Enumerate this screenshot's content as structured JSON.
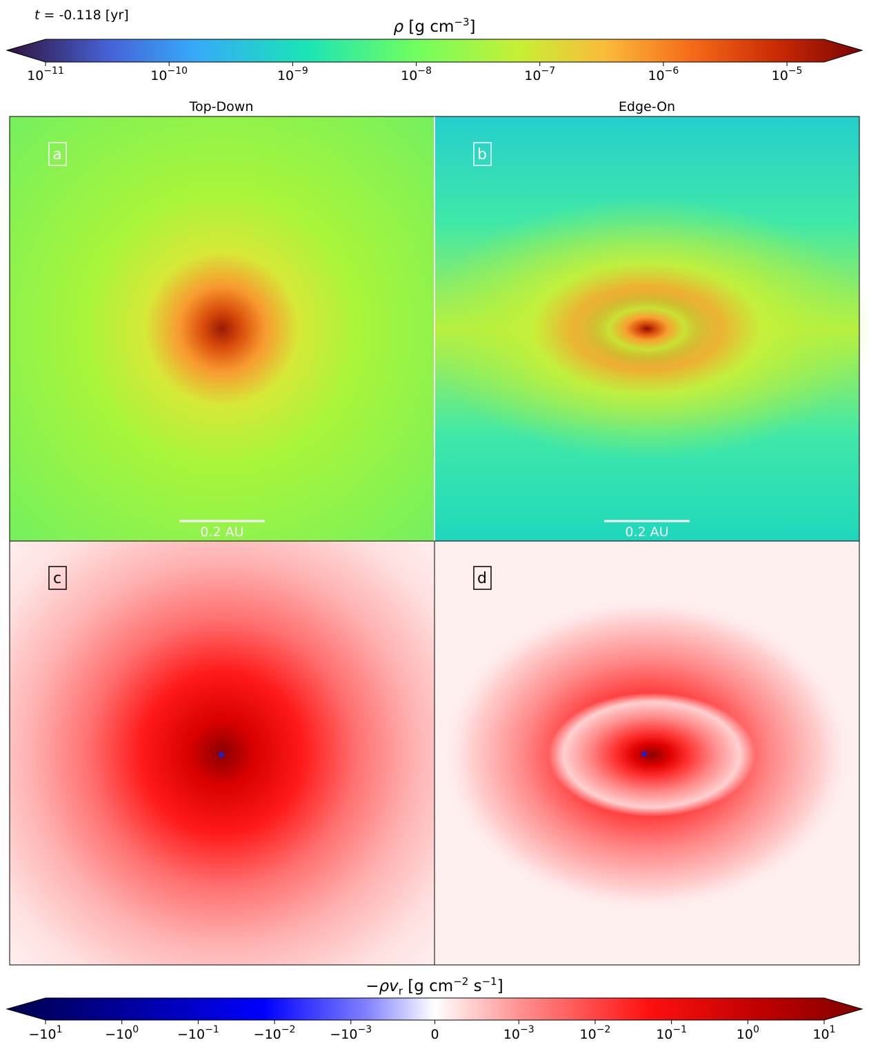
{
  "time_label": {
    "symbol": "t",
    "text": " = -0.118 [yr]"
  },
  "colorbar_top": {
    "label_parts": [
      "ρ",
      " [g cm",
      "−3",
      "]"
    ],
    "scale": "log",
    "lim": [
      1e-11,
      2e-05
    ],
    "ticks": [
      {
        "value": 1e-11,
        "label": "10",
        "exp": "−11"
      },
      {
        "value": 1e-10,
        "label": "10",
        "exp": "−10"
      },
      {
        "value": 1e-09,
        "label": "10",
        "exp": "−9"
      },
      {
        "value": 1e-08,
        "label": "10",
        "exp": "−8"
      },
      {
        "value": 1e-07,
        "label": "10",
        "exp": "−7"
      },
      {
        "value": 1e-06,
        "label": "10",
        "exp": "−6"
      },
      {
        "value": 1e-05,
        "label": "10",
        "exp": "−5"
      }
    ]
  },
  "colorbar_bottom": {
    "label_parts": [
      "−ρv",
      "r",
      " [g cm",
      "−2",
      " s",
      "−1",
      "]"
    ],
    "scale": "symlog",
    "linthresh": 0.001,
    "linscale": 1.1,
    "lim": [
      -10,
      10
    ],
    "ticks": [
      {
        "value": -10,
        "label": "−10",
        "exp": "1"
      },
      {
        "value": -1,
        "label": "−10",
        "exp": "0"
      },
      {
        "value": -0.1,
        "label": "−10",
        "exp": "−1"
      },
      {
        "value": -0.01,
        "label": "−10",
        "exp": "−2"
      },
      {
        "value": -0.001,
        "label": "−10",
        "exp": "−3"
      },
      {
        "value": 0,
        "label": "0"
      },
      {
        "value": 0.001,
        "label": "10",
        "exp": "−3"
      },
      {
        "value": 0.01,
        "label": "10",
        "exp": "−2"
      },
      {
        "value": 0.1,
        "label": "10",
        "exp": "−1"
      },
      {
        "value": 1,
        "label": "10",
        "exp": "0"
      },
      {
        "value": 10,
        "label": "10",
        "exp": "1"
      }
    ]
  },
  "columns": [
    "Top-Down",
    "Edge-On"
  ],
  "panels": [
    "a",
    "b",
    "c",
    "d"
  ],
  "scale_bar": "0.2 AU"
}
